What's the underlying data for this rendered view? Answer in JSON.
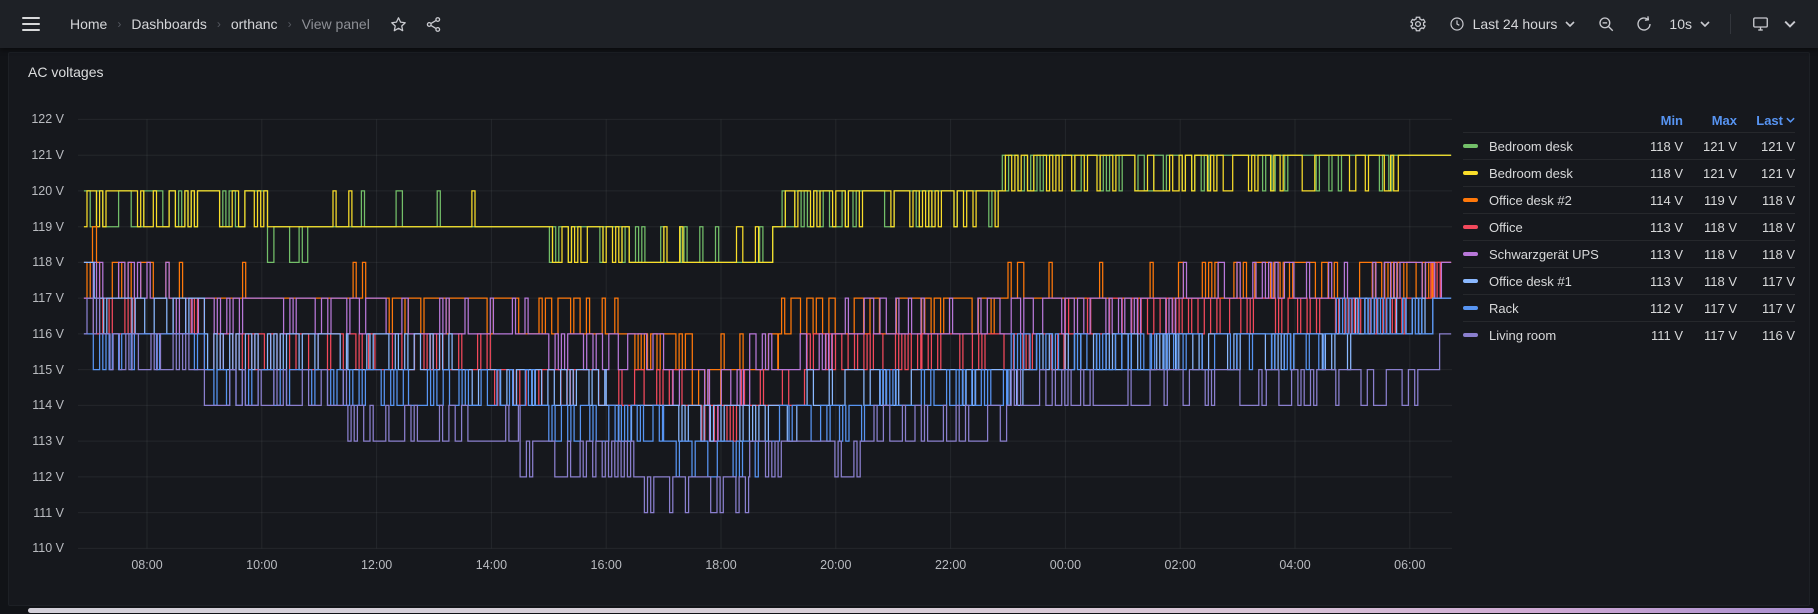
{
  "nav": {
    "breadcrumb": [
      {
        "label": "Home"
      },
      {
        "label": "Dashboards"
      },
      {
        "label": "orthanc"
      },
      {
        "label": "View panel"
      }
    ],
    "time_range_label": "Last 24 hours",
    "refresh_interval": "10s"
  },
  "panel": {
    "title": "AC voltages"
  },
  "chart_data": {
    "type": "line",
    "line_style": "step",
    "title": "AC voltages",
    "unit": "V",
    "ylim": [
      110,
      122
    ],
    "y_ticks": [
      110,
      111,
      112,
      113,
      114,
      115,
      116,
      117,
      118,
      119,
      120,
      121,
      122
    ],
    "x_ticks": [
      {
        "label": "08:00",
        "hour": 8
      },
      {
        "label": "10:00",
        "hour": 10
      },
      {
        "label": "12:00",
        "hour": 12
      },
      {
        "label": "14:00",
        "hour": 14
      },
      {
        "label": "16:00",
        "hour": 16
      },
      {
        "label": "18:00",
        "hour": 18
      },
      {
        "label": "20:00",
        "hour": 20
      },
      {
        "label": "22:00",
        "hour": 22
      },
      {
        "label": "00:00",
        "hour": 24
      },
      {
        "label": "02:00",
        "hour": 26
      },
      {
        "label": "04:00",
        "hour": 28
      },
      {
        "label": "06:00",
        "hour": 30
      }
    ],
    "x_range_hours": [
      6.9,
      30.72
    ],
    "grid": true,
    "legend_position": "right-table",
    "legend_columns": [
      "Min",
      "Max",
      "Last"
    ],
    "legend_sorted_by": "Last",
    "series": [
      {
        "name": "Bedroom desk",
        "color": "#73BF69",
        "min": "118 V",
        "max": "121 V",
        "last": "121 V",
        "segments": [
          [
            6.9,
            10.1,
            119,
            120,
            0.5
          ],
          [
            10.1,
            10.8,
            119,
            118,
            0.35
          ],
          [
            10.8,
            14.9,
            119,
            120,
            0.06
          ],
          [
            14.9,
            16.4,
            119,
            118,
            0.18
          ],
          [
            16.4,
            17.3,
            118,
            119,
            0.08
          ],
          [
            17.3,
            18.9,
            118,
            119,
            0.25
          ],
          [
            18.9,
            20.3,
            119,
            120,
            0.5
          ],
          [
            20.3,
            22.9,
            120,
            119,
            0.2
          ],
          [
            22.9,
            26.5,
            121,
            120,
            0.28
          ],
          [
            26.5,
            29.7,
            121,
            120,
            0.18
          ],
          [
            29.7,
            30.72,
            121,
            121,
            0
          ]
        ]
      },
      {
        "name": "Bedroom desk",
        "color": "#FADE2A",
        "min": "118 V",
        "max": "121 V",
        "last": "121 V",
        "segments": [
          [
            6.9,
            10.1,
            120,
            119,
            0.5
          ],
          [
            10.1,
            10.8,
            119,
            118,
            0.25
          ],
          [
            10.8,
            14.9,
            119,
            120,
            0.04
          ],
          [
            14.9,
            16.4,
            119,
            118,
            0.35
          ],
          [
            16.4,
            18.9,
            118,
            119,
            0.12
          ],
          [
            18.9,
            20.3,
            120,
            119,
            0.45
          ],
          [
            20.3,
            22.9,
            120,
            119,
            0.25
          ],
          [
            22.9,
            29.8,
            121,
            120,
            0.3
          ],
          [
            29.8,
            30.72,
            121,
            121,
            0
          ]
        ]
      },
      {
        "name": "Office desk #2",
        "color": "#FF780A",
        "min": "114 V",
        "max": "119 V",
        "last": "118 V",
        "segments": [
          [
            6.9,
            7.05,
            117,
            118,
            0.4
          ],
          [
            7.05,
            7.12,
            119,
            119,
            0
          ],
          [
            7.12,
            8.4,
            117,
            118,
            0.45
          ],
          [
            8.4,
            12.0,
            117,
            118,
            0.18
          ],
          [
            12.0,
            14.5,
            117,
            116,
            0.25
          ],
          [
            14.5,
            16.5,
            116,
            117,
            0.3
          ],
          [
            16.5,
            17.5,
            116,
            115,
            0.3
          ],
          [
            17.5,
            18.0,
            115,
            114,
            0.3
          ],
          [
            18.0,
            19.0,
            115,
            116,
            0.25
          ],
          [
            19.0,
            21.0,
            116,
            117,
            0.35
          ],
          [
            21.0,
            23.0,
            117,
            116,
            0.2
          ],
          [
            23.0,
            26.0,
            117,
            118,
            0.12
          ],
          [
            26.0,
            27.3,
            117,
            118,
            0.3
          ],
          [
            27.3,
            28.3,
            118,
            117,
            0.25
          ],
          [
            28.3,
            30.0,
            117,
            118,
            0.35
          ],
          [
            30.0,
            30.4,
            117,
            118,
            0.4
          ],
          [
            30.4,
            30.72,
            118,
            118,
            0
          ]
        ]
      },
      {
        "name": "Office",
        "color": "#F2495C",
        "min": "113 V",
        "max": "118 V",
        "last": "118 V",
        "segments": [
          [
            6.9,
            9.0,
            116,
            117,
            0.3
          ],
          [
            9.0,
            12.0,
            116,
            115,
            0.3
          ],
          [
            12.0,
            14.0,
            115,
            116,
            0.35
          ],
          [
            14.0,
            16.0,
            115,
            114,
            0.3
          ],
          [
            16.0,
            17.5,
            114,
            115,
            0.35
          ],
          [
            17.5,
            18.3,
            114,
            113,
            0.3
          ],
          [
            18.3,
            19.5,
            114,
            115,
            0.3
          ],
          [
            19.5,
            21.5,
            115,
            116,
            0.4
          ],
          [
            21.5,
            24.0,
            116,
            115,
            0.3
          ],
          [
            24.0,
            27.0,
            116,
            117,
            0.45
          ],
          [
            27.0,
            30.2,
            117,
            116,
            0.3
          ],
          [
            30.2,
            30.55,
            117,
            118,
            0.4
          ],
          [
            30.55,
            30.72,
            118,
            118,
            0
          ]
        ]
      },
      {
        "name": "Schwarzgerät UPS",
        "color": "#B877D9",
        "min": "113 V",
        "max": "118 V",
        "last": "118 V",
        "segments": [
          [
            6.9,
            8.4,
            117,
            118,
            0.35
          ],
          [
            8.4,
            12.0,
            117,
            116,
            0.35
          ],
          [
            12.0,
            15.0,
            116,
            117,
            0.25
          ],
          [
            15.0,
            17.0,
            116,
            115,
            0.3
          ],
          [
            17.0,
            17.8,
            115,
            114,
            0.3
          ],
          [
            17.8,
            17.95,
            113,
            114,
            0.3
          ],
          [
            17.95,
            18.5,
            114,
            115,
            0.3
          ],
          [
            18.5,
            20.0,
            115,
            116,
            0.3
          ],
          [
            20.0,
            23.0,
            116,
            117,
            0.3
          ],
          [
            23.0,
            26.0,
            117,
            116,
            0.35
          ],
          [
            26.0,
            29.5,
            117,
            118,
            0.3
          ],
          [
            29.5,
            30.55,
            117,
            118,
            0.45
          ],
          [
            30.55,
            30.72,
            118,
            118,
            0
          ]
        ]
      },
      {
        "name": "Office desk #1",
        "color": "#8AB8FF",
        "min": "113 V",
        "max": "118 V",
        "last": "117 V",
        "segments": [
          [
            6.9,
            7.08,
            118,
            118,
            0
          ],
          [
            7.08,
            9.0,
            117,
            116,
            0.25
          ],
          [
            9.0,
            11.5,
            116,
            115,
            0.3
          ],
          [
            11.5,
            13.5,
            115,
            116,
            0.3
          ],
          [
            13.5,
            16.0,
            115,
            114,
            0.35
          ],
          [
            16.0,
            18.0,
            114,
            113,
            0.3
          ],
          [
            18.0,
            19.5,
            114,
            113,
            0.2
          ],
          [
            19.5,
            21.5,
            114,
            115,
            0.35
          ],
          [
            21.5,
            23.5,
            115,
            114,
            0.25
          ],
          [
            23.5,
            26.0,
            115,
            116,
            0.35
          ],
          [
            26.0,
            29.0,
            116,
            115,
            0.25
          ],
          [
            29.0,
            30.4,
            116,
            117,
            0.35
          ],
          [
            30.4,
            30.72,
            117,
            117,
            0
          ]
        ]
      },
      {
        "name": "Rack",
        "color": "#5794F2",
        "min": "112 V",
        "max": "117 V",
        "last": "117 V",
        "segments": [
          [
            6.9,
            9.0,
            116,
            115,
            0.3
          ],
          [
            9.0,
            12.5,
            115,
            114,
            0.35
          ],
          [
            12.5,
            15.0,
            114,
            115,
            0.25
          ],
          [
            15.0,
            17.0,
            114,
            113,
            0.35
          ],
          [
            17.0,
            18.8,
            113,
            112,
            0.3
          ],
          [
            18.8,
            20.5,
            114,
            113,
            0.35
          ],
          [
            20.5,
            23.0,
            114,
            115,
            0.3
          ],
          [
            23.0,
            25.5,
            115,
            116,
            0.3
          ],
          [
            25.5,
            28.5,
            116,
            115,
            0.25
          ],
          [
            28.5,
            30.4,
            116,
            117,
            0.3
          ],
          [
            30.4,
            30.72,
            117,
            117,
            0
          ]
        ]
      },
      {
        "name": "Living room",
        "color": "#8A7FCE",
        "min": "111 V",
        "max": "117 V",
        "last": "116 V",
        "segments": [
          [
            6.9,
            7.3,
            116,
            117,
            0.4
          ],
          [
            7.3,
            9.0,
            115,
            116,
            0.3
          ],
          [
            9.0,
            11.5,
            114,
            115,
            0.3
          ],
          [
            11.5,
            14.5,
            113,
            114,
            0.35
          ],
          [
            14.5,
            16.5,
            112,
            113,
            0.4
          ],
          [
            16.5,
            18.5,
            112,
            111,
            0.25
          ],
          [
            18.5,
            20.5,
            113,
            112,
            0.3
          ],
          [
            20.5,
            23.0,
            113,
            114,
            0.35
          ],
          [
            23.0,
            25.5,
            114,
            115,
            0.3
          ],
          [
            25.5,
            27.5,
            115,
            114,
            0.3
          ],
          [
            27.5,
            30.3,
            115,
            114,
            0.25
          ],
          [
            30.3,
            30.55,
            115,
            116,
            0.45
          ],
          [
            30.55,
            30.72,
            116,
            116,
            0
          ]
        ]
      }
    ]
  }
}
